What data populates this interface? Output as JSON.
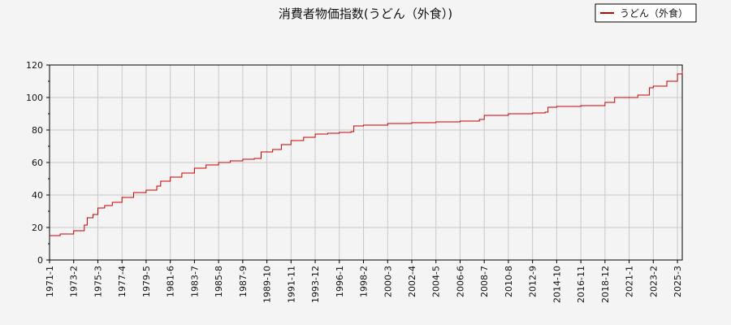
{
  "chart_data": {
    "type": "line",
    "title": "消費者物価指数(うどん（外食）)",
    "xlabel": "",
    "ylabel": "",
    "ylim": [
      0,
      120
    ],
    "yticks": [
      0,
      20,
      40,
      60,
      80,
      100,
      120
    ],
    "x_tick_labels": [
      "1971-1",
      "1973-2",
      "1975-3",
      "1977-4",
      "1979-5",
      "1981-6",
      "1983-7",
      "1985-8",
      "1987-9",
      "1989-10",
      "1991-11",
      "1993-12",
      "1996-1",
      "1998-2",
      "2000-3",
      "2002-4",
      "2004-5",
      "2006-6",
      "2008-7",
      "2010-8",
      "2012-9",
      "2014-10",
      "2016-11",
      "2018-12",
      "2021-1",
      "2023-2",
      "2025-3"
    ],
    "x_range": [
      "1971-1",
      "2025-8"
    ],
    "grid": true,
    "legend": {
      "position": "top-right",
      "entries": [
        "うどん（外食）"
      ]
    },
    "series": [
      {
        "name": "うどん（外食）",
        "color": "#cc0000",
        "points": [
          [
            "1971-1",
            15
          ],
          [
            "1971-12",
            16
          ],
          [
            "1973-2",
            18
          ],
          [
            "1974-1",
            21.5
          ],
          [
            "1974-4",
            26
          ],
          [
            "1974-10",
            28
          ],
          [
            "1975-3",
            32
          ],
          [
            "1975-10",
            33.5
          ],
          [
            "1976-6",
            35.5
          ],
          [
            "1977-4",
            38.5
          ],
          [
            "1978-4",
            41.5
          ],
          [
            "1979-5",
            43
          ],
          [
            "1980-4",
            45.5
          ],
          [
            "1980-8",
            48.5
          ],
          [
            "1981-6",
            51
          ],
          [
            "1982-6",
            53.5
          ],
          [
            "1983-7",
            56.5
          ],
          [
            "1984-7",
            58.5
          ],
          [
            "1985-8",
            60
          ],
          [
            "1986-8",
            61
          ],
          [
            "1987-9",
            62
          ],
          [
            "1988-9",
            62.5
          ],
          [
            "1989-4",
            66.5
          ],
          [
            "1990-4",
            68
          ],
          [
            "1991-1",
            71
          ],
          [
            "1991-11",
            73.5
          ],
          [
            "1992-12",
            75.5
          ],
          [
            "1993-12",
            77.5
          ],
          [
            "1995-1",
            78
          ],
          [
            "1996-1",
            78.5
          ],
          [
            "1997-1",
            79
          ],
          [
            "1997-4",
            82.5
          ],
          [
            "1998-2",
            83
          ],
          [
            "2000-3",
            84
          ],
          [
            "2002-4",
            84.5
          ],
          [
            "2004-5",
            85
          ],
          [
            "2006-6",
            85.5
          ],
          [
            "2008-2",
            86.5
          ],
          [
            "2008-7",
            89
          ],
          [
            "2010-8",
            90
          ],
          [
            "2012-9",
            90.5
          ],
          [
            "2013-10",
            91
          ],
          [
            "2014-1",
            94
          ],
          [
            "2014-10",
            94.5
          ],
          [
            "2016-11",
            95
          ],
          [
            "2018-12",
            97
          ],
          [
            "2019-10",
            100
          ],
          [
            "2021-1",
            100
          ],
          [
            "2021-10",
            101.5
          ],
          [
            "2022-10",
            106
          ],
          [
            "2023-2",
            107
          ],
          [
            "2024-4",
            110
          ],
          [
            "2025-3",
            114.5
          ],
          [
            "2025-8",
            116.5
          ]
        ]
      }
    ]
  }
}
